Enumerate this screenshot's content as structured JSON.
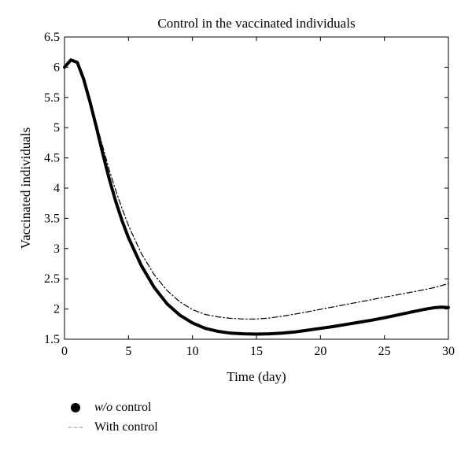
{
  "chart_data": {
    "type": "line",
    "title": "Control in the vaccinated individuals",
    "xlabel": "Time (day)",
    "ylabel": "Vaccinated individuals",
    "xlim": [
      0,
      30
    ],
    "ylim": [
      1.5,
      6.5
    ],
    "xticks": [
      0,
      5,
      10,
      15,
      20,
      25,
      30
    ],
    "yticks": [
      1.5,
      2,
      2.5,
      3,
      3.5,
      4,
      4.5,
      5,
      5.5,
      6,
      6.5
    ],
    "xtick_labels": [
      "0",
      "5",
      "10",
      "15",
      "20",
      "25",
      "30"
    ],
    "ytick_labels": [
      "1.5",
      "2",
      "2.5",
      "3",
      "3.5",
      "4",
      "4.5",
      "5",
      "5.5",
      "6",
      "6.5"
    ],
    "grid": false,
    "legend_position": "below-left",
    "series": [
      {
        "name": "w/o control",
        "legend_italic": "w/o",
        "legend_rest": " control",
        "style": "solid-thick",
        "color": "#000000",
        "x": [
          0,
          0.5,
          1,
          1.5,
          2,
          2.5,
          3,
          3.5,
          4,
          4.5,
          5,
          6,
          7,
          8,
          9,
          10,
          11,
          12,
          13,
          14,
          15,
          16,
          17,
          18,
          19,
          20,
          21,
          22,
          23,
          24,
          25,
          26,
          27,
          28,
          29,
          29.5,
          30
        ],
        "y": [
          6.0,
          6.12,
          6.08,
          5.8,
          5.42,
          5.0,
          4.56,
          4.15,
          3.78,
          3.46,
          3.18,
          2.72,
          2.36,
          2.09,
          1.9,
          1.77,
          1.68,
          1.63,
          1.6,
          1.59,
          1.585,
          1.59,
          1.6,
          1.62,
          1.65,
          1.68,
          1.71,
          1.745,
          1.78,
          1.815,
          1.855,
          1.9,
          1.945,
          1.99,
          2.025,
          2.03,
          2.025
        ]
      },
      {
        "name": "With control",
        "style": "dash-dot",
        "color": "#000000",
        "x": [
          0,
          0.5,
          1,
          1.5,
          2,
          2.5,
          3,
          3.5,
          4,
          4.5,
          5,
          6,
          7,
          8,
          9,
          10,
          11,
          12,
          13,
          14,
          15,
          16,
          17,
          18,
          19,
          20,
          21,
          22,
          23,
          24,
          25,
          26,
          27,
          28,
          29,
          30
        ],
        "y": [
          6.0,
          6.12,
          6.08,
          5.8,
          5.44,
          5.06,
          4.68,
          4.3,
          3.96,
          3.66,
          3.38,
          2.92,
          2.57,
          2.31,
          2.12,
          1.99,
          1.91,
          1.87,
          1.845,
          1.835,
          1.835,
          1.85,
          1.88,
          1.915,
          1.955,
          1.995,
          2.035,
          2.075,
          2.115,
          2.155,
          2.195,
          2.235,
          2.275,
          2.315,
          2.36,
          2.42
        ]
      }
    ]
  }
}
